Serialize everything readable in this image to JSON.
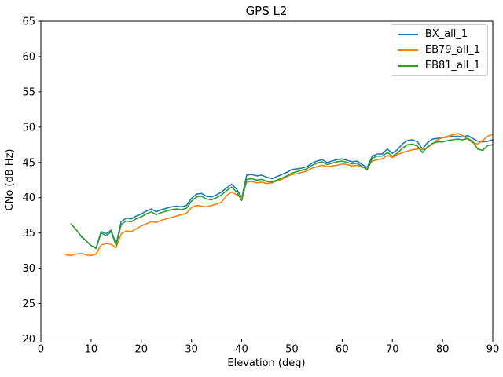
{
  "figure": {
    "background": "#ffffff"
  },
  "chart_data": {
    "type": "line",
    "title": "GPS L2",
    "xlabel": "Elevation (deg)",
    "ylabel": "CNo (dB Hz)",
    "xlim": [
      0,
      90
    ],
    "ylim": [
      20,
      65
    ],
    "xticks": [
      0,
      10,
      20,
      30,
      40,
      50,
      60,
      70,
      80,
      90
    ],
    "yticks": [
      20,
      25,
      30,
      35,
      40,
      45,
      50,
      55,
      60,
      65
    ],
    "grid": false,
    "legend": {
      "position": "upper right",
      "border_color": "#cccccc"
    },
    "series": [
      {
        "name": "BX_all_1",
        "color": "#1f77b4",
        "x": [
          8,
          9,
          10,
          11,
          12,
          13,
          14,
          15,
          16,
          17,
          18,
          19,
          20,
          21,
          22,
          23,
          24,
          25,
          26,
          27,
          28,
          29,
          30,
          31,
          32,
          33,
          34,
          35,
          36,
          37,
          38,
          39,
          40,
          41,
          42,
          43,
          44,
          45,
          46,
          47,
          48,
          49,
          50,
          51,
          52,
          53,
          54,
          55,
          56,
          57,
          58,
          59,
          60,
          61,
          62,
          63,
          64,
          65,
          66,
          67,
          68,
          69,
          70,
          71,
          72,
          73,
          74,
          75,
          76,
          77,
          78,
          79,
          80,
          81,
          82,
          83,
          84,
          85,
          86,
          87,
          88,
          89,
          90
        ],
        "y": [
          34.5,
          33.9,
          33.2,
          32.9,
          35.2,
          34.9,
          35.4,
          33.4,
          36.6,
          37.1,
          37.0,
          37.4,
          37.7,
          38.1,
          38.4,
          38.0,
          38.3,
          38.5,
          38.7,
          38.8,
          38.7,
          38.9,
          39.9,
          40.5,
          40.6,
          40.2,
          40.1,
          40.4,
          40.8,
          41.4,
          41.9,
          41.2,
          40.0,
          43.2,
          43.3,
          43.1,
          43.2,
          42.9,
          42.7,
          43.0,
          43.3,
          43.6,
          44.0,
          44.1,
          44.2,
          44.4,
          44.9,
          45.2,
          45.4,
          45.0,
          45.2,
          45.4,
          45.5,
          45.3,
          45.1,
          45.2,
          44.7,
          44.3,
          45.9,
          46.2,
          46.2,
          46.9,
          46.3,
          46.8,
          47.6,
          48.1,
          48.2,
          47.9,
          46.9,
          47.8,
          48.3,
          48.4,
          48.5,
          48.6,
          48.7,
          48.7,
          48.6,
          48.8,
          48.4,
          48.0,
          47.9,
          48.0,
          48.2
        ]
      },
      {
        "name": "EB79_all_1",
        "color": "#ff7f0e",
        "x": [
          5,
          6,
          7,
          8,
          9,
          10,
          11,
          12,
          13,
          14,
          15,
          16,
          17,
          18,
          19,
          20,
          21,
          22,
          23,
          24,
          25,
          26,
          27,
          28,
          29,
          30,
          31,
          32,
          33,
          34,
          35,
          36,
          37,
          38,
          39,
          40,
          41,
          42,
          43,
          44,
          45,
          46,
          47,
          48,
          49,
          50,
          51,
          52,
          53,
          54,
          55,
          56,
          57,
          58,
          59,
          60,
          61,
          62,
          63,
          64,
          65,
          66,
          67,
          68,
          69,
          70,
          71,
          72,
          73,
          74,
          75,
          76,
          77,
          78,
          79,
          80,
          81,
          82,
          83,
          84,
          85,
          86,
          87,
          88,
          89,
          90
        ],
        "y": [
          31.9,
          31.8,
          32.0,
          32.1,
          31.9,
          31.8,
          32.0,
          33.3,
          33.5,
          33.4,
          32.9,
          34.9,
          35.3,
          35.2,
          35.6,
          36.0,
          36.3,
          36.6,
          36.5,
          36.8,
          37.0,
          37.2,
          37.4,
          37.6,
          37.8,
          38.6,
          38.9,
          38.8,
          38.7,
          38.9,
          39.1,
          39.4,
          40.3,
          40.8,
          40.4,
          40.0,
          42.2,
          42.3,
          42.1,
          42.2,
          42.0,
          42.1,
          42.4,
          42.6,
          43.0,
          43.3,
          43.4,
          43.6,
          43.8,
          44.2,
          44.4,
          44.6,
          44.4,
          44.5,
          44.6,
          44.8,
          44.7,
          44.5,
          44.6,
          44.3,
          44.2,
          45.2,
          45.4,
          45.5,
          46.0,
          45.7,
          46.1,
          46.4,
          46.6,
          46.8,
          46.9,
          46.8,
          47.1,
          47.6,
          48.2,
          48.5,
          48.7,
          48.9,
          49.1,
          48.8,
          48.3,
          47.8,
          47.6,
          48.1,
          48.7,
          49.0
        ]
      },
      {
        "name": "EB81_all_1",
        "color": "#2ca02c",
        "x": [
          6,
          7,
          8,
          9,
          10,
          11,
          12,
          13,
          14,
          15,
          16,
          17,
          18,
          19,
          20,
          21,
          22,
          23,
          24,
          25,
          26,
          27,
          28,
          29,
          30,
          31,
          32,
          33,
          34,
          35,
          36,
          37,
          38,
          39,
          40,
          41,
          42,
          43,
          44,
          45,
          46,
          47,
          48,
          49,
          50,
          51,
          52,
          53,
          54,
          55,
          56,
          57,
          58,
          59,
          60,
          61,
          62,
          63,
          64,
          65,
          66,
          67,
          68,
          69,
          70,
          71,
          72,
          73,
          74,
          75,
          76,
          77,
          78,
          79,
          80,
          81,
          82,
          83,
          84,
          85,
          86,
          87,
          88,
          89,
          90
        ],
        "y": [
          36.3,
          35.5,
          34.6,
          33.9,
          33.2,
          32.8,
          35.0,
          34.6,
          35.2,
          33.2,
          36.2,
          36.7,
          36.6,
          37.0,
          37.3,
          37.7,
          38.0,
          37.6,
          37.9,
          38.1,
          38.3,
          38.4,
          38.3,
          38.5,
          39.5,
          40.1,
          40.2,
          39.8,
          39.7,
          40.0,
          40.4,
          41.0,
          41.5,
          40.8,
          39.6,
          42.6,
          42.7,
          42.5,
          42.6,
          42.3,
          42.2,
          42.5,
          42.8,
          43.1,
          43.5,
          43.7,
          43.9,
          44.1,
          44.6,
          44.9,
          45.1,
          44.7,
          44.9,
          45.1,
          45.2,
          45.0,
          44.8,
          44.9,
          44.4,
          44.0,
          45.6,
          45.9,
          45.9,
          46.4,
          45.9,
          46.3,
          47.0,
          47.5,
          47.6,
          47.3,
          46.4,
          47.2,
          47.7,
          47.9,
          47.9,
          48.1,
          48.2,
          48.3,
          48.2,
          48.4,
          48.0,
          46.9,
          46.7,
          47.4,
          47.5
        ]
      }
    ]
  }
}
